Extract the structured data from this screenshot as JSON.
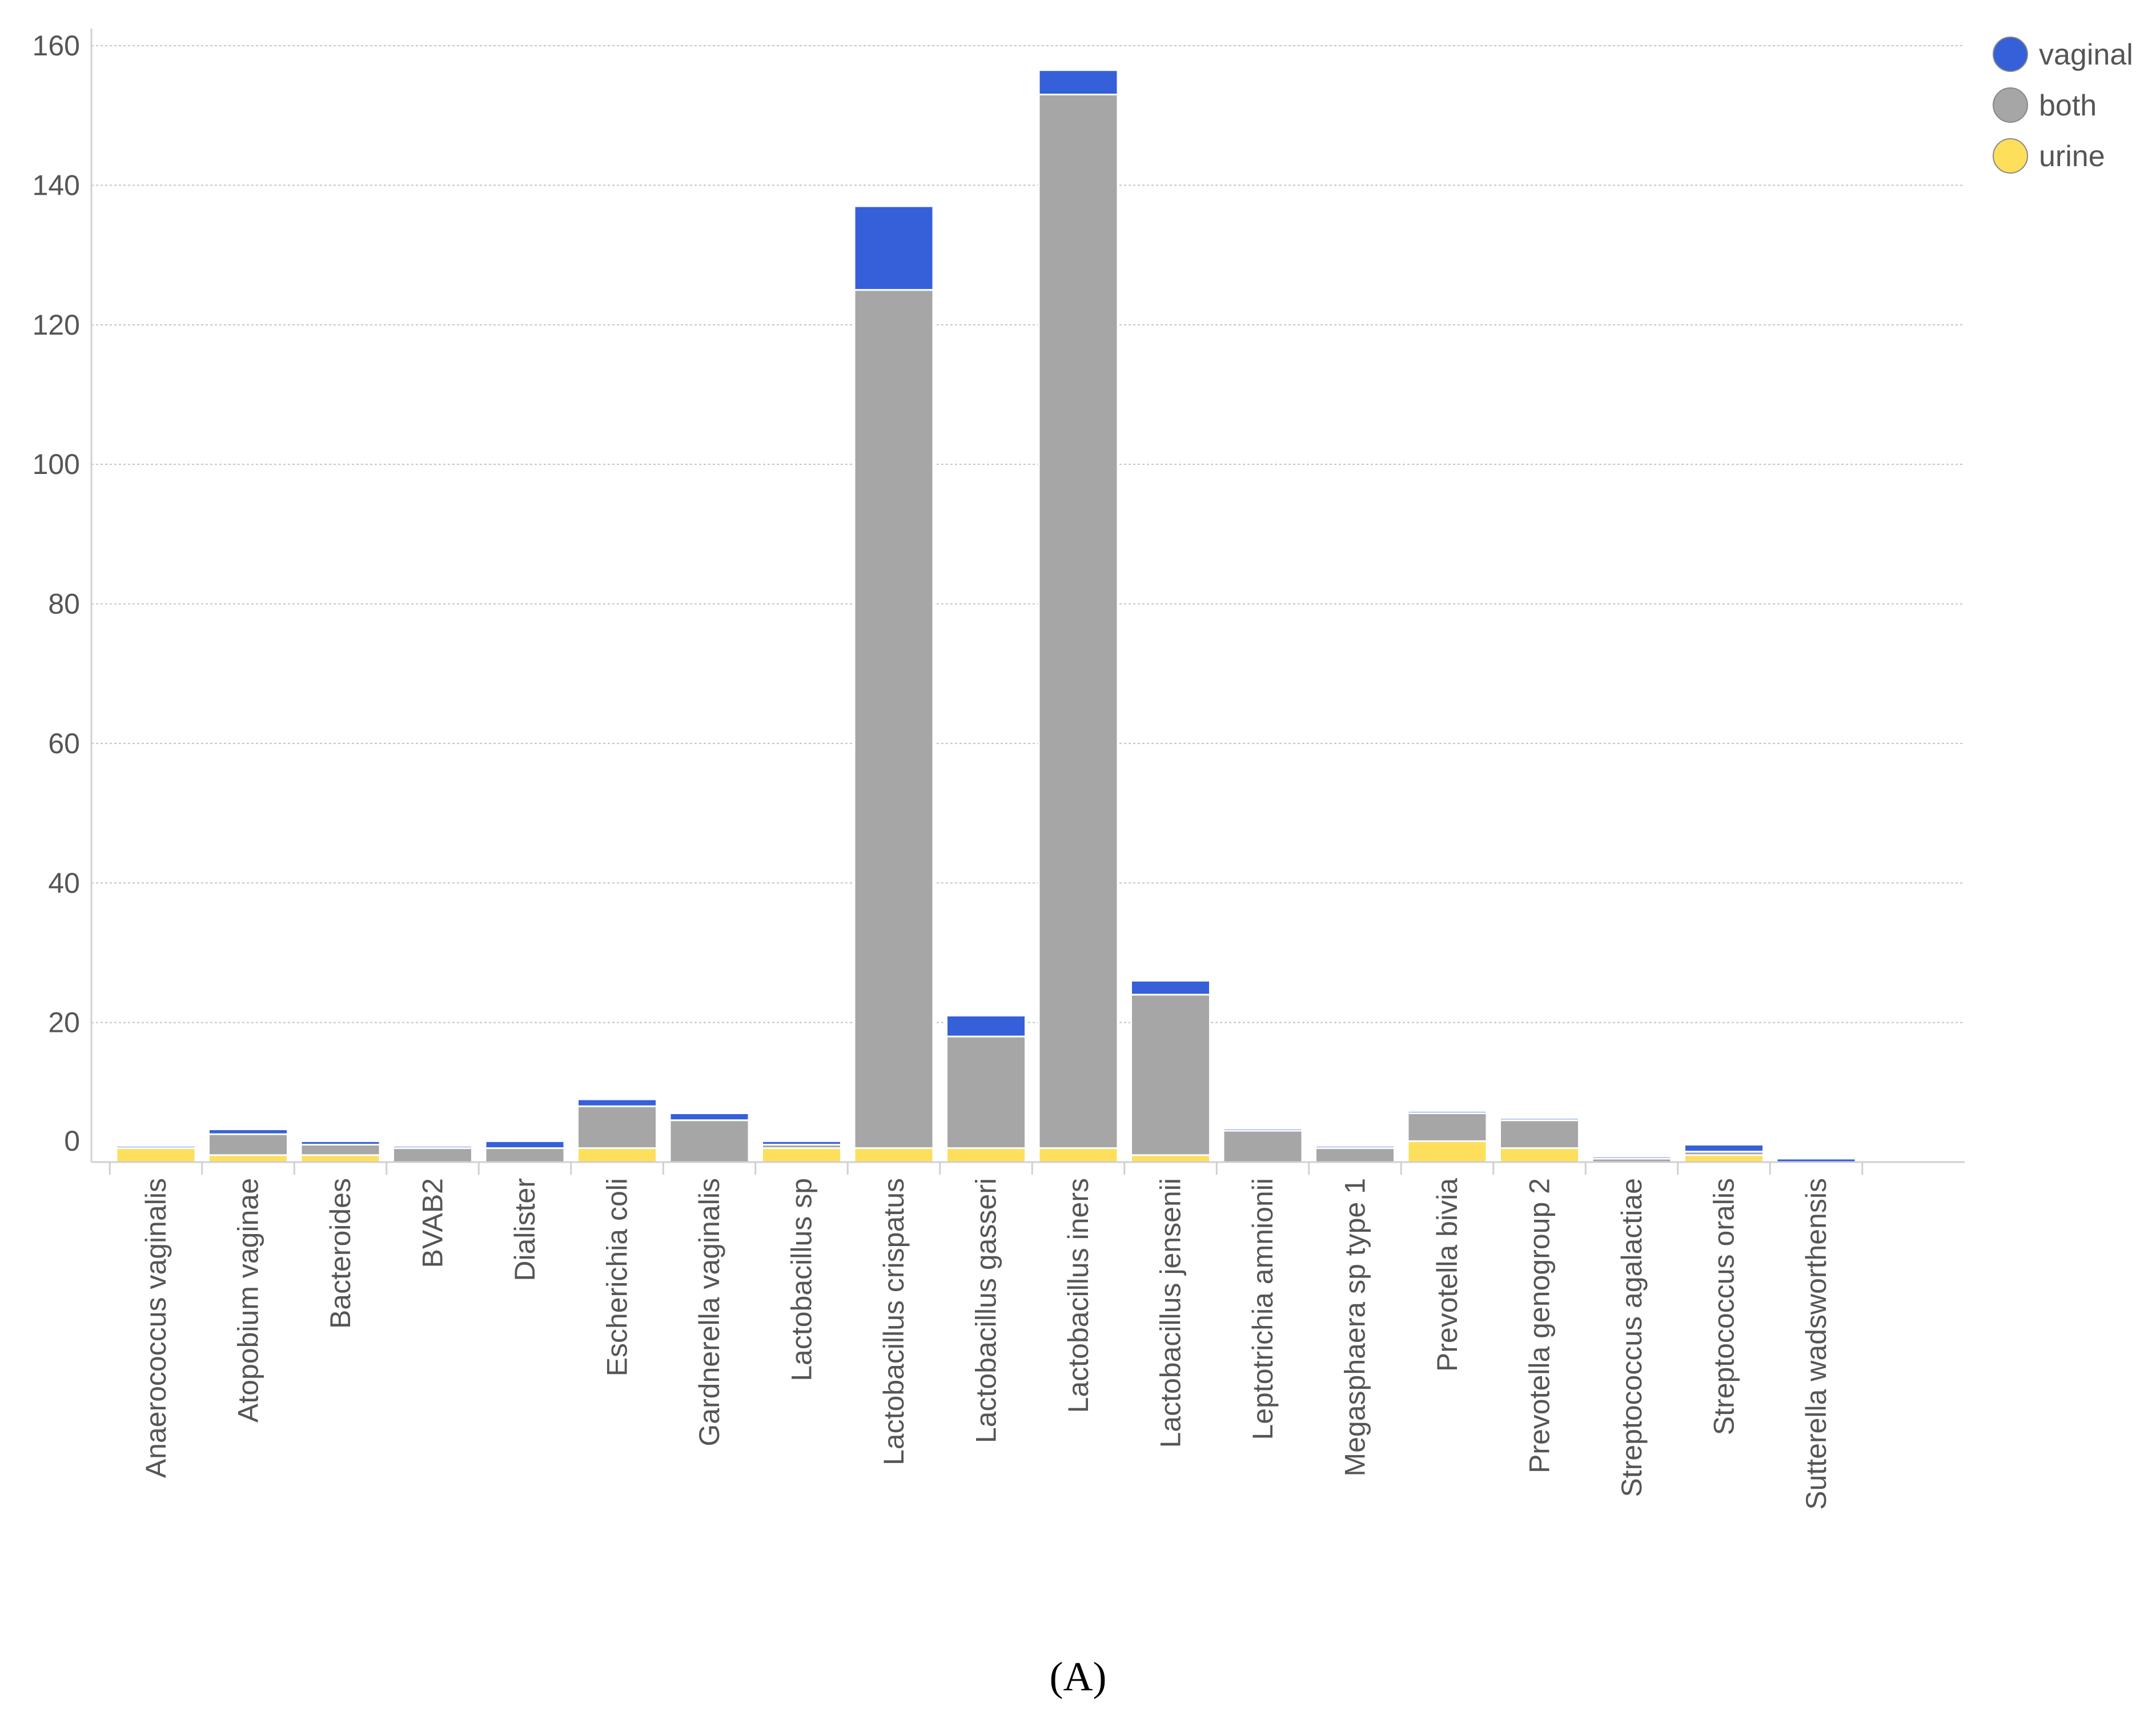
{
  "chart_data": {
    "type": "bar",
    "stacked": true,
    "categories": [
      "Anaerococcus vaginalis",
      "Atopobium vaginae",
      "Bacteroides",
      "BVAB2",
      "Dialister",
      "Escherichia coli",
      "Gardnerella vaginalis",
      "Lactobacillus sp",
      "Lactobacillus crispatus",
      "Lactobacillus gasseri",
      "Lactobacillus iners",
      "Lactobacillus jensenii",
      "Leptotrichia amnionii",
      "Megasphaera sp type 1",
      "Prevotella bivia",
      "Prevotella genogroup 2",
      "Streptococcus agalactiae",
      "Streptococcus oralis",
      "Sutterella wadsworthensis"
    ],
    "series": [
      {
        "name": "urine",
        "values": [
          2,
          1,
          1,
          0,
          0,
          2,
          0,
          2,
          2,
          2,
          2,
          1,
          0,
          0,
          3,
          2,
          0,
          1,
          0
        ]
      },
      {
        "name": "both",
        "values": [
          0,
          3,
          1.5,
          2,
          2,
          6,
          6,
          0.5,
          123,
          16,
          151,
          23,
          4.5,
          2,
          4,
          4,
          0.5,
          0.5,
          0
        ]
      },
      {
        "name": "vaginal",
        "values": [
          0.3,
          0.7,
          0.5,
          0.3,
          1,
          1,
          1,
          0.5,
          12,
          3,
          3.5,
          2,
          0.3,
          0.3,
          0.3,
          0.3,
          0.3,
          1,
          0.5
        ]
      }
    ],
    "yticks": [
      0,
      20,
      40,
      60,
      80,
      100,
      120,
      140,
      160
    ],
    "ylim": [
      0,
      160
    ],
    "grid": true,
    "legend_position": "top-right",
    "colors": {
      "vaginal": "#3560d9",
      "both": "#a6a6a6",
      "urine": "#fddf5b"
    },
    "legend_order": [
      "vaginal",
      "both",
      "urine"
    ]
  },
  "caption": "(A)"
}
